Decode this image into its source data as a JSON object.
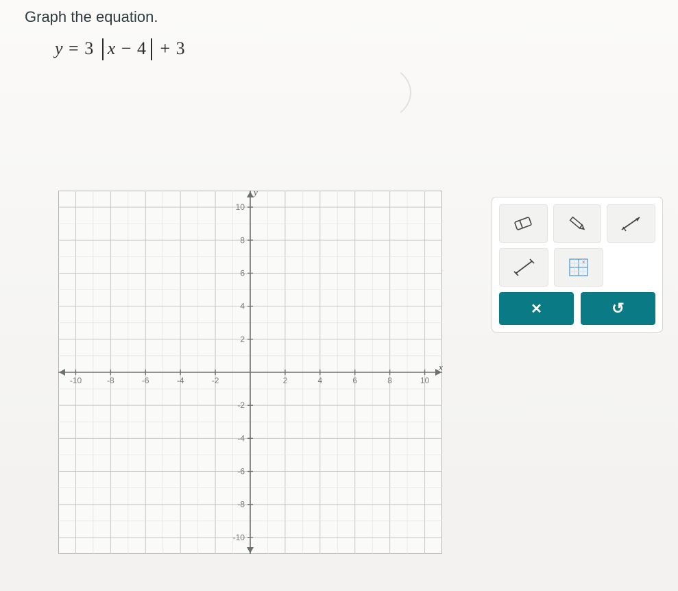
{
  "prompt": "Graph the equation.",
  "equation": {
    "lhs_var": "y",
    "eq_sign": "=",
    "coeff": "3",
    "abs_inner_var": "x",
    "abs_inner_op": "−",
    "abs_inner_const": "4",
    "tail_op": "+",
    "tail_const": "3"
  },
  "graph": {
    "type": "cartesian-grid",
    "x_axis_label": "x",
    "y_axis_label": "y",
    "xlim": [
      -11,
      11
    ],
    "ylim": [
      -11,
      11
    ],
    "major_step": 2,
    "minor_step": 1,
    "x_ticks": [
      -10,
      -8,
      -6,
      -4,
      -2,
      2,
      4,
      6,
      8,
      10
    ],
    "y_ticks": [
      10,
      8,
      6,
      4,
      2,
      -2,
      -4,
      -6,
      -8,
      -10
    ],
    "grid_color_major": "#c7c7c5",
    "grid_color_minor": "#e3e3e1",
    "axis_color": "#6e6f70",
    "background_color": "#fafaf9",
    "border_color": "#9a9a98",
    "tick_font_size": 12,
    "tick_color": "#7b7c7d",
    "axis_label_fontsize": 13
  },
  "toolbox": {
    "tools_row1": [
      "eraser",
      "pencil",
      "ray"
    ],
    "tools_row2": [
      "segment",
      "point-grid"
    ],
    "clear_symbol": "✕",
    "undo_symbol": "↺",
    "button_bg": "#f2f2f0",
    "action_bg": "#0a7a84",
    "action_fg": "#ffffff"
  }
}
